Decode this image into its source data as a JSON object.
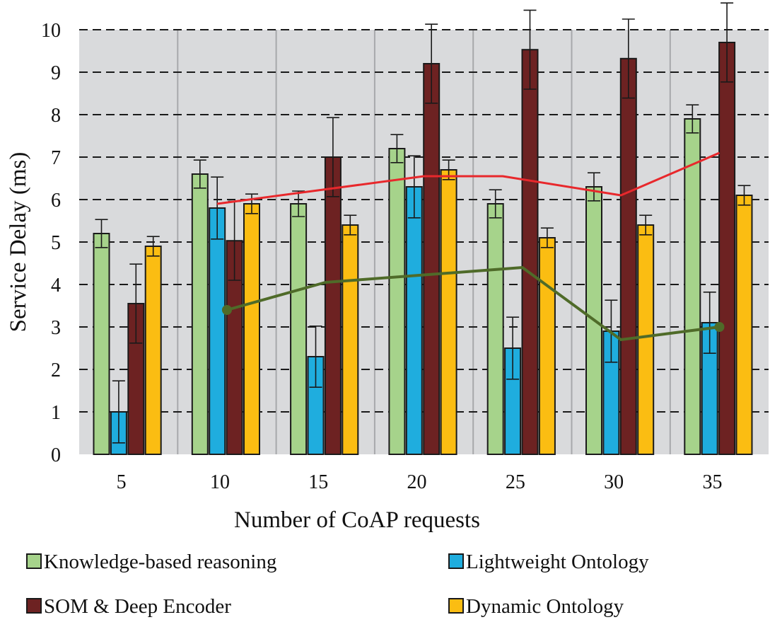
{
  "chart_data": {
    "type": "bar",
    "xlabel": "Number of CoAP requests",
    "ylabel": "Service Delay (ms)",
    "categories": [
      "5",
      "10",
      "15",
      "20",
      "25",
      "30",
      "35"
    ],
    "ylim": [
      0,
      10
    ],
    "yticks": [
      "0",
      "1",
      "2",
      "3",
      "4",
      "5",
      "6",
      "7",
      "8",
      "9",
      "10"
    ],
    "grid": "horizontal dashed",
    "legend_position": "bottom",
    "series": [
      {
        "name": "Knowledge-based reasoning",
        "color": "#a6d38b",
        "values": [
          5.2,
          6.6,
          5.9,
          7.2,
          5.9,
          6.3,
          7.9
        ],
        "error": [
          0.33,
          0.33,
          0.3,
          0.33,
          0.33,
          0.33,
          0.33
        ]
      },
      {
        "name": "Lightweight Ontology",
        "color": "#1fadde",
        "values": [
          1.0,
          5.8,
          2.3,
          6.3,
          2.5,
          2.9,
          3.1
        ],
        "error": [
          0.73,
          0.73,
          0.72,
          0.73,
          0.73,
          0.73,
          0.72
        ]
      },
      {
        "name": "SOM & Deep Encoder",
        "color": "#6d2222",
        "values": [
          3.55,
          5.03,
          7.0,
          9.2,
          9.53,
          9.32,
          9.7
        ],
        "error": [
          0.93,
          0.93,
          0.93,
          0.93,
          0.93,
          0.93,
          0.93
        ]
      },
      {
        "name": "Dynamic Ontology",
        "color": "#fbbd12",
        "values": [
          4.9,
          5.9,
          5.4,
          6.7,
          5.1,
          5.4,
          6.1
        ],
        "error": [
          0.23,
          0.23,
          0.23,
          0.23,
          0.23,
          0.23,
          0.23
        ]
      }
    ],
    "lines": [
      {
        "color": "#e8282c",
        "x": [
          9.5,
          20,
          24,
          30,
          35
        ],
        "y": [
          5.9,
          6.55,
          6.55,
          6.1,
          7.1
        ],
        "markers": false
      },
      {
        "color": "#4f6b29",
        "x": [
          10,
          15,
          25,
          30,
          35
        ],
        "y": [
          3.4,
          4.05,
          4.4,
          2.7,
          3.0
        ],
        "markers": [
          10,
          35
        ]
      }
    ]
  }
}
